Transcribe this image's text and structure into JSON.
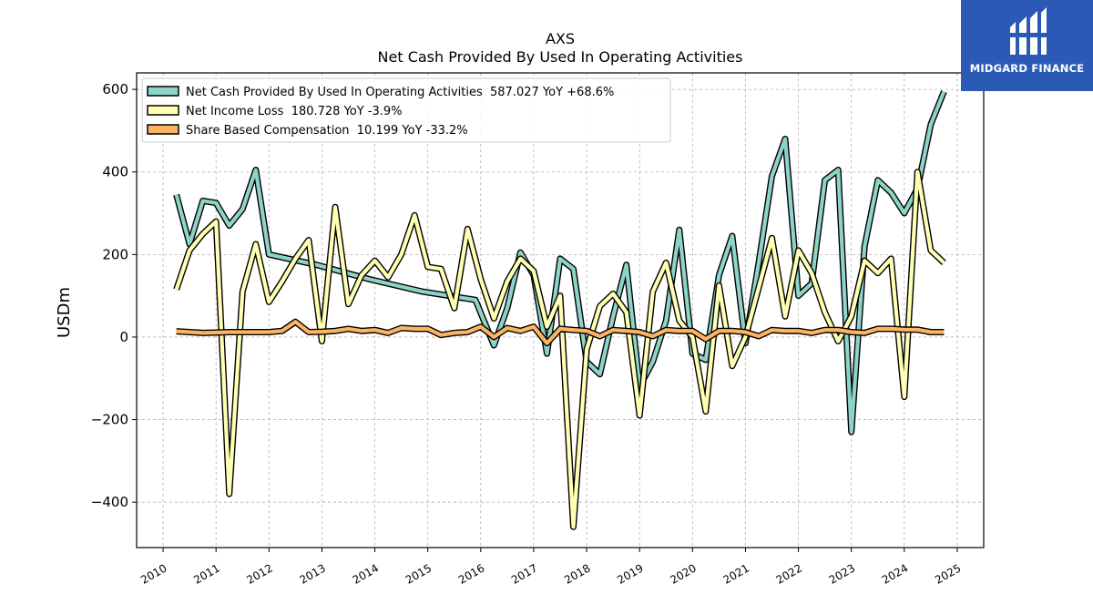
{
  "chart_data": {
    "type": "line",
    "title": "AXS",
    "subtitle": "Net Cash Provided By Used In Operating Activities",
    "xlabel": "",
    "ylabel": "USDm",
    "xlim": [
      2009.5,
      2025.5
    ],
    "ylim": [
      -510,
      640
    ],
    "x_ticks": [
      "2010",
      "2011",
      "2012",
      "2013",
      "2014",
      "2015",
      "2016",
      "2017",
      "2018",
      "2019",
      "2020",
      "2021",
      "2022",
      "2023",
      "2024",
      "2025"
    ],
    "y_ticks": [
      600,
      400,
      200,
      0,
      -200,
      -400
    ],
    "y_tick_labels": [
      "600",
      "400",
      "200",
      "0",
      "−200",
      "−400"
    ],
    "grid": true,
    "legend_position": "top-left",
    "series": [
      {
        "name": "Net Cash Provided By Used In Operating Activities  587.027 YoY +68.6%",
        "color": "#8dd3c7",
        "points": [
          [
            2010.25,
            345
          ],
          [
            2010.5,
            225
          ],
          [
            2010.75,
            330
          ],
          [
            2011.0,
            325
          ],
          [
            2011.25,
            270
          ],
          [
            2011.5,
            310
          ],
          [
            2011.75,
            405
          ],
          [
            2012.0,
            200
          ],
          [
            2012.9,
            175
          ],
          [
            2013.9,
            140
          ],
          [
            2014.9,
            110
          ],
          [
            2015.9,
            90
          ],
          [
            2016.25,
            -20
          ],
          [
            2016.5,
            70
          ],
          [
            2016.75,
            205
          ],
          [
            2017.0,
            150
          ],
          [
            2017.25,
            -40
          ],
          [
            2017.5,
            190
          ],
          [
            2017.75,
            165
          ],
          [
            2018.0,
            -60
          ],
          [
            2018.25,
            -90
          ],
          [
            2018.5,
            50
          ],
          [
            2018.75,
            175
          ],
          [
            2019.0,
            -120
          ],
          [
            2019.25,
            -60
          ],
          [
            2019.5,
            40
          ],
          [
            2019.75,
            260
          ],
          [
            2020.0,
            -40
          ],
          [
            2020.25,
            -55
          ],
          [
            2020.5,
            150
          ],
          [
            2020.75,
            245
          ],
          [
            2021.0,
            -15
          ],
          [
            2021.25,
            180
          ],
          [
            2021.5,
            390
          ],
          [
            2021.75,
            480
          ],
          [
            2022.0,
            100
          ],
          [
            2022.25,
            130
          ],
          [
            2022.5,
            380
          ],
          [
            2022.75,
            405
          ],
          [
            2023.0,
            -230
          ],
          [
            2023.25,
            220
          ],
          [
            2023.5,
            380
          ],
          [
            2023.75,
            350
          ],
          [
            2024.0,
            300
          ],
          [
            2024.25,
            360
          ],
          [
            2024.5,
            515
          ],
          [
            2024.75,
            595
          ]
        ]
      },
      {
        "name": "Net Income Loss  180.728 YoY -3.9%",
        "color": "#ffffb3",
        "points": [
          [
            2010.25,
            115
          ],
          [
            2010.5,
            210
          ],
          [
            2010.75,
            250
          ],
          [
            2011.0,
            280
          ],
          [
            2011.25,
            -380
          ],
          [
            2011.5,
            110
          ],
          [
            2011.75,
            225
          ],
          [
            2012.0,
            85
          ],
          [
            2012.25,
            135
          ],
          [
            2012.5,
            190
          ],
          [
            2012.75,
            235
          ],
          [
            2013.0,
            -10
          ],
          [
            2013.25,
            315
          ],
          [
            2013.5,
            80
          ],
          [
            2013.75,
            150
          ],
          [
            2014.0,
            185
          ],
          [
            2014.25,
            145
          ],
          [
            2014.5,
            200
          ],
          [
            2014.75,
            295
          ],
          [
            2015.0,
            170
          ],
          [
            2015.25,
            165
          ],
          [
            2015.5,
            70
          ],
          [
            2015.75,
            262
          ],
          [
            2016.0,
            140
          ],
          [
            2016.25,
            45
          ],
          [
            2016.5,
            135
          ],
          [
            2016.75,
            190
          ],
          [
            2017.0,
            160
          ],
          [
            2017.25,
            25
          ],
          [
            2017.5,
            100
          ],
          [
            2017.75,
            -460
          ],
          [
            2018.0,
            -30
          ],
          [
            2018.25,
            75
          ],
          [
            2018.5,
            105
          ],
          [
            2018.75,
            60
          ],
          [
            2019.0,
            -190
          ],
          [
            2019.25,
            110
          ],
          [
            2019.5,
            180
          ],
          [
            2019.75,
            40
          ],
          [
            2020.0,
            0
          ],
          [
            2020.25,
            -180
          ],
          [
            2020.5,
            125
          ],
          [
            2020.75,
            -70
          ],
          [
            2021.0,
            0
          ],
          [
            2021.25,
            120
          ],
          [
            2021.5,
            240
          ],
          [
            2021.75,
            50
          ],
          [
            2022.0,
            210
          ],
          [
            2022.25,
            155
          ],
          [
            2022.5,
            60
          ],
          [
            2022.75,
            -10
          ],
          [
            2023.0,
            50
          ],
          [
            2023.25,
            185
          ],
          [
            2023.5,
            155
          ],
          [
            2023.75,
            190
          ],
          [
            2024.0,
            -145
          ],
          [
            2024.25,
            400
          ],
          [
            2024.5,
            210
          ],
          [
            2024.75,
            180
          ]
        ]
      },
      {
        "name": "Share Based Compensation  10.199 YoY -33.2%",
        "color": "#fdb462",
        "points": [
          [
            2010.25,
            14
          ],
          [
            2010.5,
            12
          ],
          [
            2010.75,
            10
          ],
          [
            2011.0,
            11
          ],
          [
            2011.25,
            12
          ],
          [
            2011.5,
            12
          ],
          [
            2011.75,
            12
          ],
          [
            2012.0,
            12
          ],
          [
            2012.25,
            15
          ],
          [
            2012.5,
            37
          ],
          [
            2012.75,
            12
          ],
          [
            2013.0,
            13
          ],
          [
            2013.25,
            15
          ],
          [
            2013.5,
            20
          ],
          [
            2013.75,
            15
          ],
          [
            2014.0,
            17
          ],
          [
            2014.25,
            10
          ],
          [
            2014.5,
            22
          ],
          [
            2014.75,
            20
          ],
          [
            2015.0,
            20
          ],
          [
            2015.25,
            5
          ],
          [
            2015.5,
            10
          ],
          [
            2015.75,
            12
          ],
          [
            2016.0,
            25
          ],
          [
            2016.25,
            0
          ],
          [
            2016.5,
            22
          ],
          [
            2016.75,
            15
          ],
          [
            2017.0,
            25
          ],
          [
            2017.25,
            -15
          ],
          [
            2017.5,
            20
          ],
          [
            2017.75,
            17
          ],
          [
            2018.0,
            15
          ],
          [
            2018.25,
            2
          ],
          [
            2018.5,
            17
          ],
          [
            2018.75,
            15
          ],
          [
            2019.0,
            12
          ],
          [
            2019.25,
            2
          ],
          [
            2019.5,
            17
          ],
          [
            2019.75,
            15
          ],
          [
            2020.0,
            15
          ],
          [
            2020.25,
            -5
          ],
          [
            2020.5,
            15
          ],
          [
            2020.75,
            15
          ],
          [
            2021.0,
            12
          ],
          [
            2021.25,
            2
          ],
          [
            2021.5,
            17
          ],
          [
            2021.75,
            15
          ],
          [
            2022.0,
            15
          ],
          [
            2022.25,
            10
          ],
          [
            2022.5,
            17
          ],
          [
            2022.75,
            17
          ],
          [
            2023.0,
            12
          ],
          [
            2023.25,
            10
          ],
          [
            2023.5,
            20
          ],
          [
            2023.75,
            20
          ],
          [
            2024.0,
            18
          ],
          [
            2024.25,
            18
          ],
          [
            2024.5,
            12
          ],
          [
            2024.75,
            12
          ]
        ]
      }
    ]
  },
  "logo": {
    "text": "MIDGARD FINANCE",
    "background": "#2a5ab5"
  }
}
